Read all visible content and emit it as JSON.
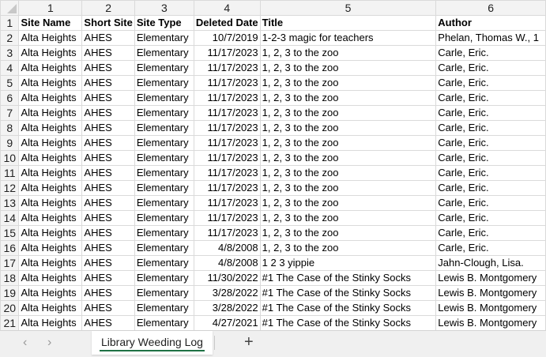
{
  "column_headers": [
    "1",
    "2",
    "3",
    "4",
    "5",
    "6"
  ],
  "header_row": [
    "Site Name",
    "Short Site",
    "Site Type",
    "Deleted Date",
    "Title",
    "Author"
  ],
  "rows": [
    [
      "Alta Heights",
      "AHES",
      "Elementary",
      "10/7/2019",
      "1-2-3 magic for teachers",
      "Phelan, Thomas W., 1"
    ],
    [
      "Alta Heights",
      "AHES",
      "Elementary",
      "11/17/2023",
      "1, 2, 3 to the zoo",
      "Carle, Eric."
    ],
    [
      "Alta Heights",
      "AHES",
      "Elementary",
      "11/17/2023",
      "1, 2, 3 to the zoo",
      "Carle, Eric."
    ],
    [
      "Alta Heights",
      "AHES",
      "Elementary",
      "11/17/2023",
      "1, 2, 3 to the zoo",
      "Carle, Eric."
    ],
    [
      "Alta Heights",
      "AHES",
      "Elementary",
      "11/17/2023",
      "1, 2, 3 to the zoo",
      "Carle, Eric."
    ],
    [
      "Alta Heights",
      "AHES",
      "Elementary",
      "11/17/2023",
      "1, 2, 3 to the zoo",
      "Carle, Eric."
    ],
    [
      "Alta Heights",
      "AHES",
      "Elementary",
      "11/17/2023",
      "1, 2, 3 to the zoo",
      "Carle, Eric."
    ],
    [
      "Alta Heights",
      "AHES",
      "Elementary",
      "11/17/2023",
      "1, 2, 3 to the zoo",
      "Carle, Eric."
    ],
    [
      "Alta Heights",
      "AHES",
      "Elementary",
      "11/17/2023",
      "1, 2, 3 to the zoo",
      "Carle, Eric."
    ],
    [
      "Alta Heights",
      "AHES",
      "Elementary",
      "11/17/2023",
      "1, 2, 3 to the zoo",
      "Carle, Eric."
    ],
    [
      "Alta Heights",
      "AHES",
      "Elementary",
      "11/17/2023",
      "1, 2, 3 to the zoo",
      "Carle, Eric."
    ],
    [
      "Alta Heights",
      "AHES",
      "Elementary",
      "11/17/2023",
      "1, 2, 3 to the zoo",
      "Carle, Eric."
    ],
    [
      "Alta Heights",
      "AHES",
      "Elementary",
      "11/17/2023",
      "1, 2, 3 to the zoo",
      "Carle, Eric."
    ],
    [
      "Alta Heights",
      "AHES",
      "Elementary",
      "11/17/2023",
      "1, 2, 3 to the zoo",
      "Carle, Eric."
    ],
    [
      "Alta Heights",
      "AHES",
      "Elementary",
      "4/8/2008",
      "1, 2, 3 to the zoo",
      "Carle, Eric."
    ],
    [
      "Alta Heights",
      "AHES",
      "Elementary",
      "4/8/2008",
      "1 2 3 yippie",
      "Jahn-Clough, Lisa."
    ],
    [
      "Alta Heights",
      "AHES",
      "Elementary",
      "11/30/2022",
      "#1 The Case of the Stinky Socks",
      "Lewis B. Montgomery"
    ],
    [
      "Alta Heights",
      "AHES",
      "Elementary",
      "3/28/2022",
      "#1 The Case of the Stinky Socks",
      "Lewis B. Montgomery"
    ],
    [
      "Alta Heights",
      "AHES",
      "Elementary",
      "3/28/2022",
      "#1 The Case of the Stinky Socks",
      "Lewis B. Montgomery"
    ],
    [
      "Alta Heights",
      "AHES",
      "Elementary",
      "4/27/2021",
      "#1 The Case of the Stinky Socks",
      "Lewis B. Montgomery"
    ]
  ],
  "sheet_tabs": [
    {
      "label": "Library Weeding Log",
      "active": true
    }
  ],
  "accent_color": "#1e7145",
  "icons": {
    "prev": "chevron-left-icon",
    "next": "chevron-right-icon",
    "add": "plus-icon"
  },
  "icon_glyphs": {
    "prev": "‹",
    "next": "›",
    "add": "+"
  }
}
